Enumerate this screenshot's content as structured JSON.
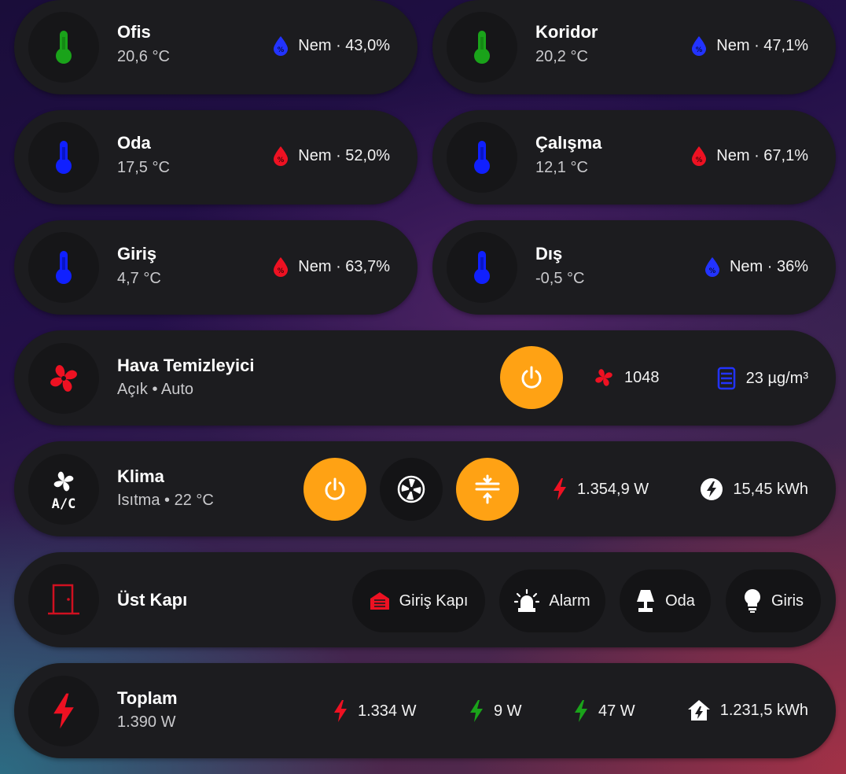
{
  "colors": {
    "accent_orange": "#ffa214",
    "temp_green": "#1aa31a",
    "temp_blue": "#1020ff",
    "humidity_blue": "#2233ff",
    "humidity_red": "#ee1122",
    "alert_red": "#ee1122",
    "power_green": "#1aa31a"
  },
  "sensors": [
    {
      "name": "Ofis",
      "temp": "20,6 °C",
      "temp_icon": "thermometer-icon",
      "temp_color": "green",
      "humidity": "Nem · 43,0%",
      "humidity_color": "blue"
    },
    {
      "name": "Koridor",
      "temp": "20,2 °C",
      "temp_icon": "thermometer-icon",
      "temp_color": "green",
      "humidity": "Nem · 47,1%",
      "humidity_color": "blue"
    },
    {
      "name": "Oda",
      "temp": "17,5 °C",
      "temp_icon": "thermometer-icon",
      "temp_color": "blue",
      "humidity": "Nem · 52,0%",
      "humidity_color": "red"
    },
    {
      "name": "Çalışma",
      "temp": "12,1 °C",
      "temp_icon": "thermometer-icon",
      "temp_color": "blue",
      "humidity": "Nem · 67,1%",
      "humidity_color": "red"
    },
    {
      "name": "Giriş",
      "temp": "4,7 °C",
      "temp_icon": "thermometer-icon",
      "temp_color": "blue",
      "humidity": "Nem · 63,7%",
      "humidity_color": "red"
    },
    {
      "name": "Dış",
      "temp": "-0,5 °C",
      "temp_icon": "thermometer-icon",
      "temp_color": "blue",
      "humidity": "Nem · 36%",
      "humidity_color": "blue"
    }
  ],
  "purifier": {
    "name": "Hava Temizleyici",
    "state": "Açık • Auto",
    "icon": "fan-icon",
    "fan_speed": "1048",
    "pm25": "23 µg/m³"
  },
  "klima": {
    "name": "Klima",
    "state": "Isıtma • 22 °C",
    "icon": "air-conditioner-icon",
    "power": "1.354,9 W",
    "energy": "15,45 kWh"
  },
  "door": {
    "name": "Üst Kapı",
    "icon": "door-icon",
    "chips": [
      "Giriş Kapı",
      "Alarm",
      "Oda",
      "Giris"
    ]
  },
  "total": {
    "name": "Toplam",
    "value": "1.390 W",
    "icon": "flash-icon",
    "items": [
      "1.334 W",
      "9 W",
      "47 W",
      "1.231,5 kWh"
    ]
  }
}
